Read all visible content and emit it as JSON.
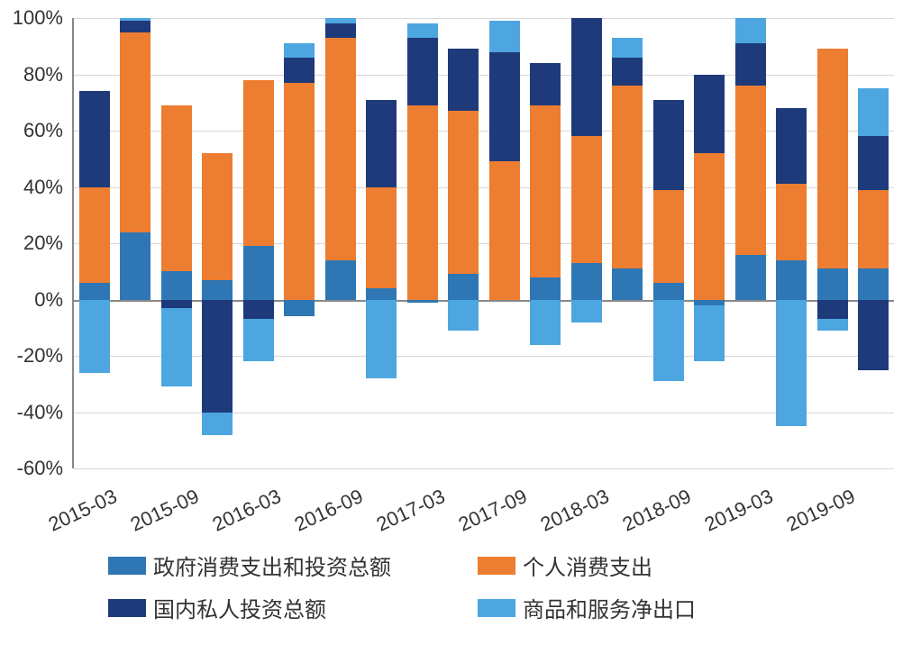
{
  "chart": {
    "type": "stacked-bar",
    "background_color": "#ffffff",
    "grid_color": "#b0b0b0",
    "axis_color": "#888888",
    "axis_font_size": 22,
    "legend_font_size": 24,
    "ylim": [
      -60,
      100
    ],
    "ytick_step": 20,
    "yticks": [
      -60,
      -40,
      -20,
      0,
      20,
      40,
      60,
      80,
      100
    ],
    "ytick_format": "percent",
    "x_labels": [
      "2015-03",
      "2015-09",
      "2016-03",
      "2016-09",
      "2017-03",
      "2017-09",
      "2018-03",
      "2018-09",
      "2019-03",
      "2019-09"
    ],
    "x_label_every": 2,
    "x_label_rotation_deg": -25,
    "bar_width_ratio": 0.75,
    "series": {
      "gov": {
        "label": "政府消费支出和投资总额",
        "color": "#2e77b4"
      },
      "personal": {
        "label": "个人消费支出",
        "color": "#ed7d31"
      },
      "private": {
        "label": "国内私人投资总额",
        "color": "#1f3a7a"
      },
      "netexp": {
        "label": "商品和服务净出口",
        "color": "#4da6e0"
      }
    },
    "legend_layout": [
      [
        "gov",
        "personal"
      ],
      [
        "private",
        "netexp"
      ]
    ],
    "periods": [
      {
        "gov": 6,
        "personal": 34,
        "private": 34,
        "netexp": -26
      },
      {
        "gov": 24,
        "personal": 71,
        "private": 4,
        "netexp_pos": 1
      },
      {
        "gov": 10,
        "personal": 59,
        "private_neg": -3,
        "netexp": -28
      },
      {
        "gov": 7,
        "personal": 45,
        "private": -40,
        "netexp": -8
      },
      {
        "gov": 19,
        "personal": 59,
        "private": -7,
        "netexp": -15
      },
      {
        "gov": -6,
        "personal": 77,
        "private_pos": 9,
        "netexp_pos": 5
      },
      {
        "gov": 14,
        "personal": 79,
        "private": 5,
        "netexp_pos": 2
      },
      {
        "gov": 4,
        "personal": 36,
        "private": 31,
        "netexp": -28
      },
      {
        "gov": -1,
        "personal": 69,
        "private": 24,
        "netexp_pos": 5
      },
      {
        "gov": 9,
        "personal": 58,
        "private": 22,
        "netexp": -11
      },
      {
        "gov": 0,
        "personal": 49,
        "private": 39,
        "netexp_pos": 11
      },
      {
        "gov": 8,
        "personal": 61,
        "private": 15,
        "netexp": -16
      },
      {
        "gov": 13,
        "personal": 45,
        "private": 42,
        "netexp": -8
      },
      {
        "gov": 11,
        "personal": 65,
        "private_pos": 10,
        "netexp_pos": 7
      },
      {
        "gov": 6,
        "personal": 33,
        "private": 32,
        "netexp": -29
      },
      {
        "gov": -2,
        "personal": 52,
        "private": 28,
        "netexp": -20
      },
      {
        "gov": 16,
        "personal": 60,
        "private_pos": 15,
        "netexp_pos": 9
      },
      {
        "gov": 14,
        "personal": 27,
        "private": 27,
        "netexp": -33,
        "netexp_slice_neg": -12
      },
      {
        "gov": 11,
        "personal": 78,
        "private": -7,
        "netexp": -4
      },
      {
        "gov": 11,
        "personal": 28,
        "private_pos": 19,
        "netexp_pos": 17,
        "private": -25
      }
    ]
  }
}
